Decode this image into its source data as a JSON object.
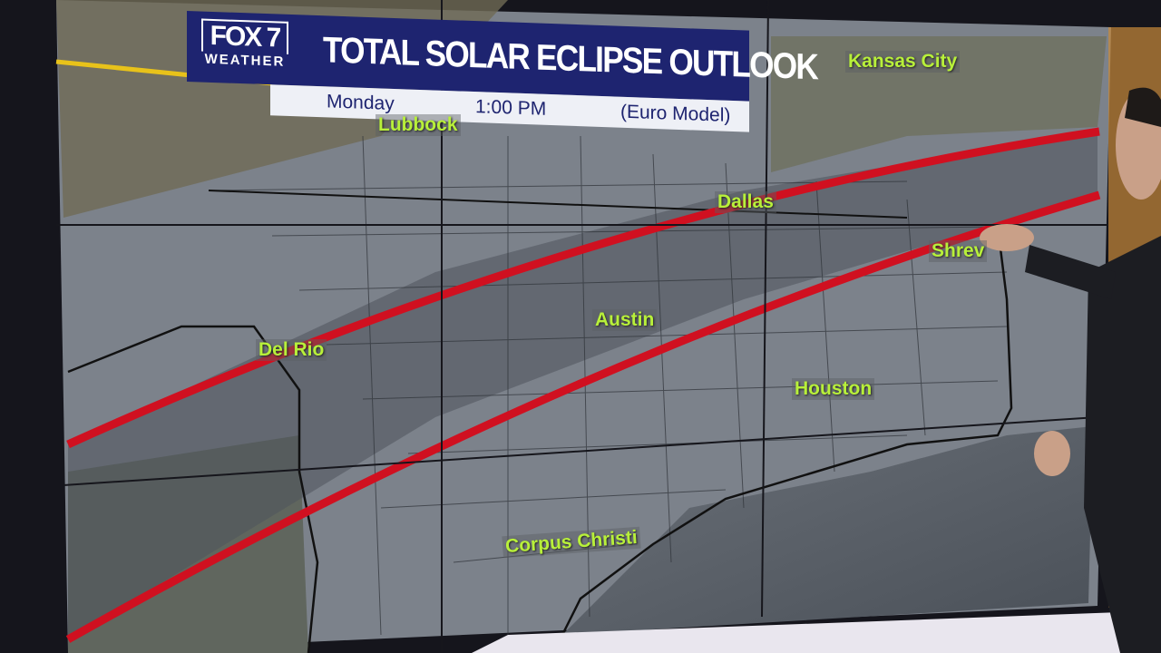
{
  "banner": {
    "logo_brand": "FOX 7",
    "logo_sub": "WEATHER",
    "title": "TOTAL SOLAR ECLIPSE OUTLOOK",
    "day": "Monday",
    "time": "1:00 PM",
    "model": "(Euro Model)"
  },
  "map": {
    "cities": [
      "Kansas City",
      "Lubbock",
      "Dallas",
      "Shrev",
      "Austin",
      "Del Rio",
      "Houston",
      "Corpus Christi"
    ],
    "path_color": "#d01020",
    "land_color": "#7f8590",
    "water_color": "#5b6169"
  }
}
